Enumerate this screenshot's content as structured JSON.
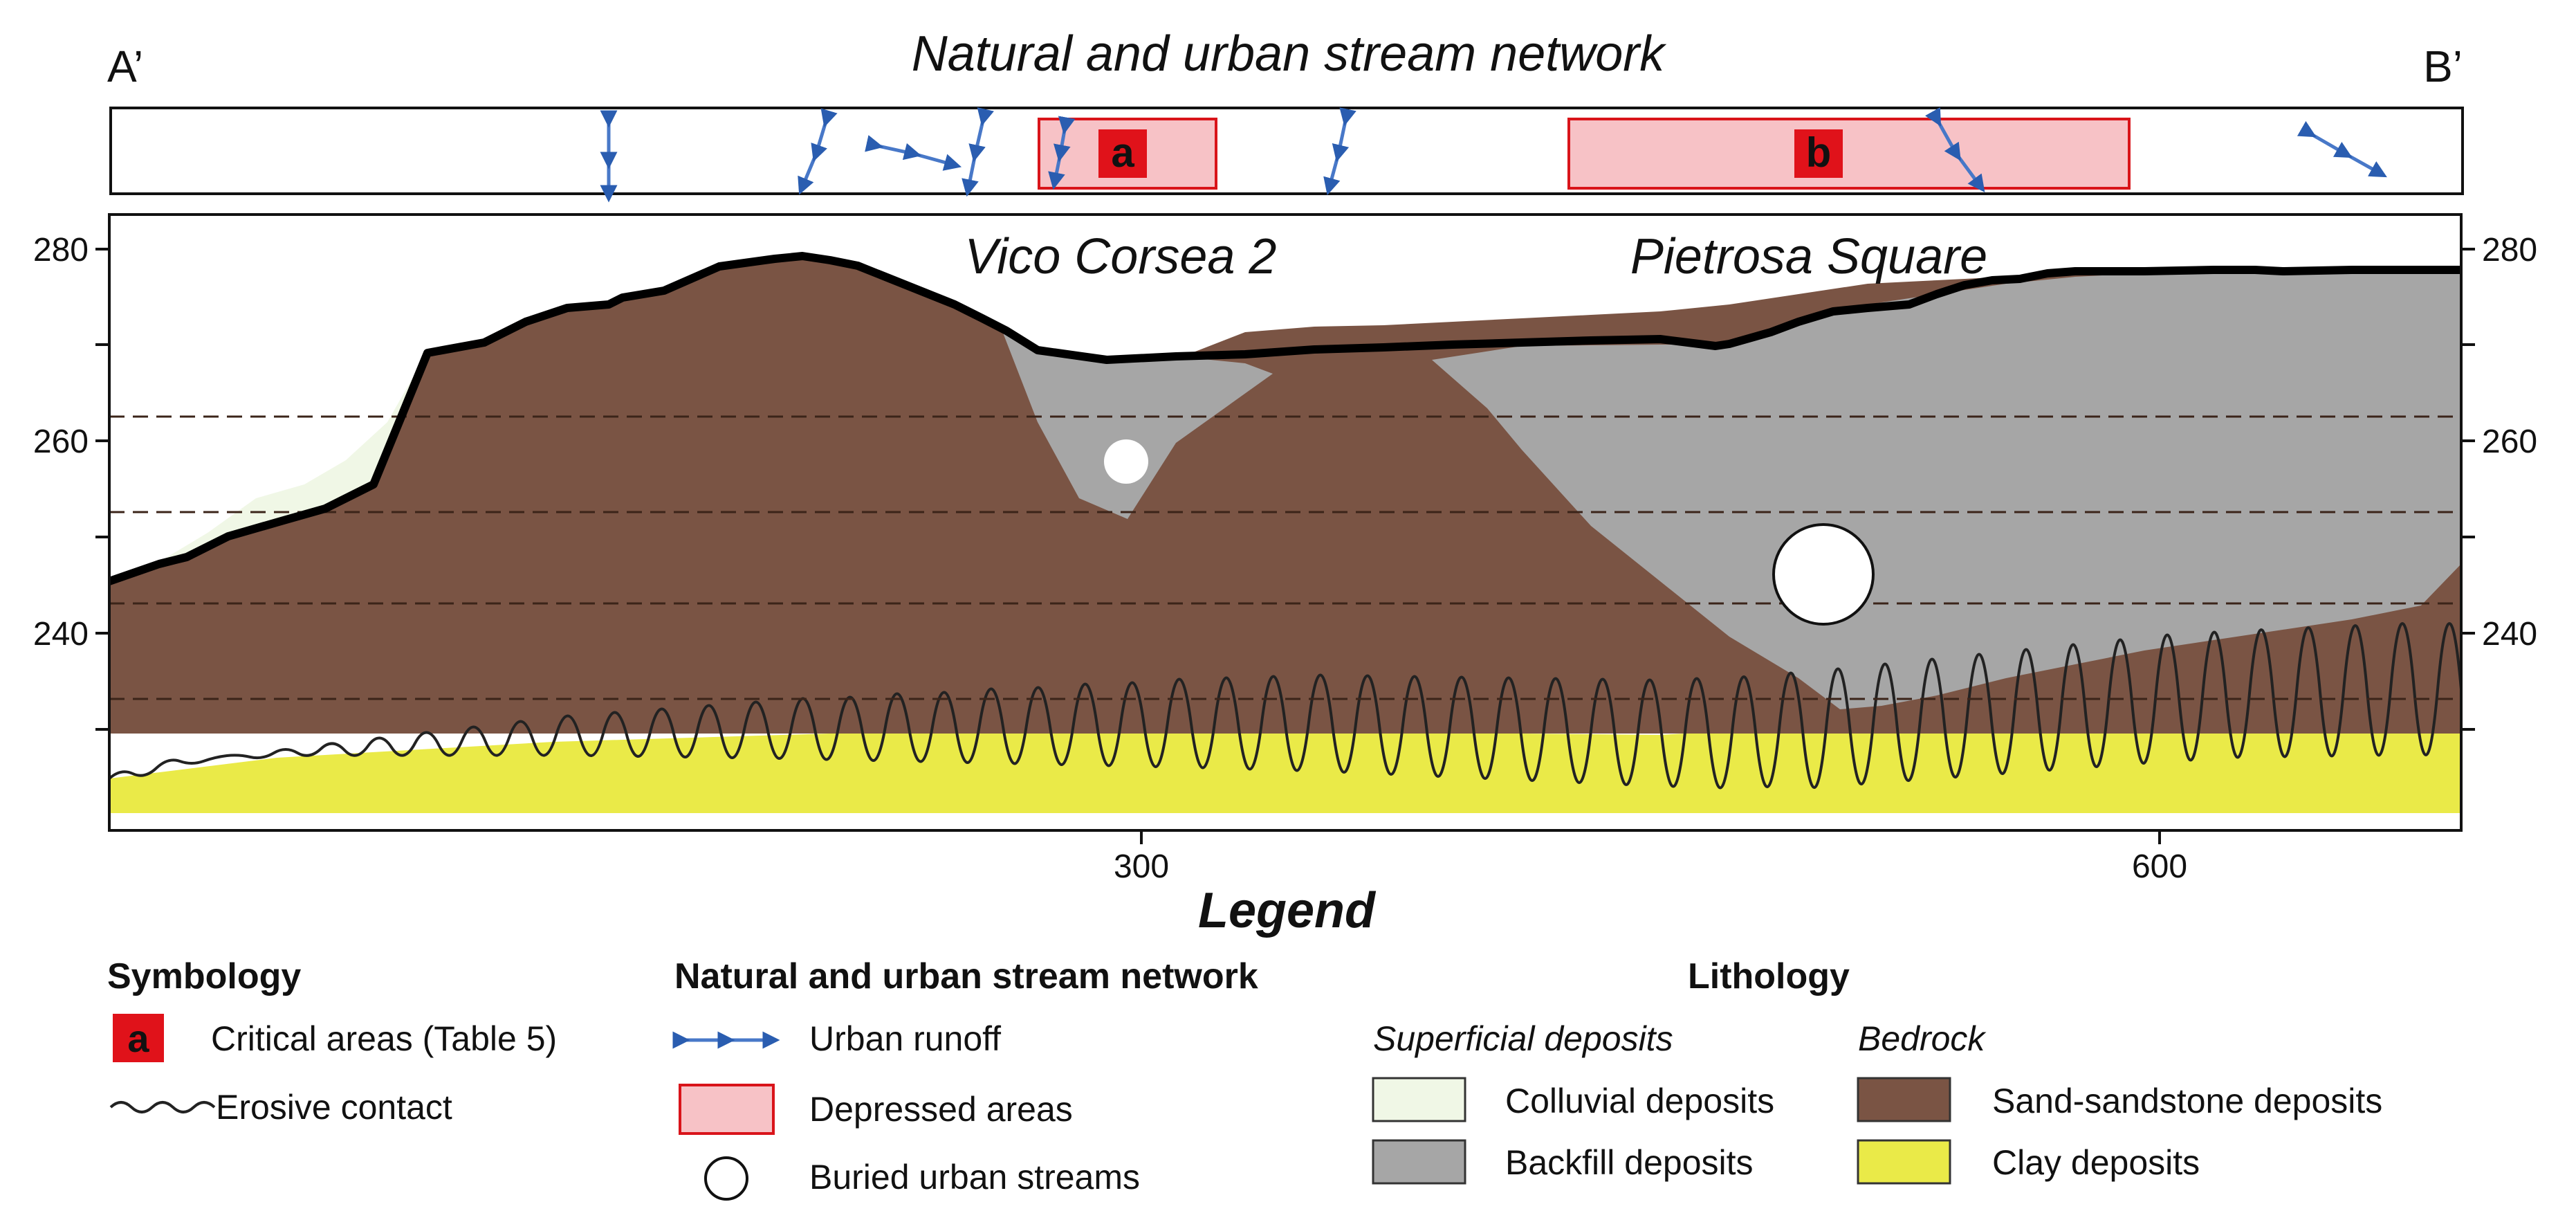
{
  "section": {
    "start_label": "A’",
    "end_label": "B’",
    "strip_title": "Natural and urban stream network",
    "places": [
      "Vico Corsea 2",
      "Pietrosa Square"
    ],
    "critical_areas": [
      "a",
      "b"
    ]
  },
  "axes": {
    "left_ticks": [
      "280",
      "260",
      "240"
    ],
    "right_ticks": [
      "280",
      "260",
      "240"
    ],
    "bottom_ticks": [
      "300",
      "600"
    ]
  },
  "legend": {
    "title": "Legend",
    "symbology": {
      "heading": "Symbology",
      "critical_symbol": "a",
      "critical_label": "Critical areas (Table 5)",
      "erosive_label": "Erosive contact"
    },
    "network": {
      "heading": "Natural and urban stream network",
      "runoff_label": "Urban runoff",
      "depressed_label": "Depressed areas",
      "buried_label": "Buried urban streams"
    },
    "lithology": {
      "heading": "Lithology",
      "superficial_heading": "Superficial deposits",
      "bedrock_heading": "Bedrock",
      "colluvial_label": "Colluvial deposits",
      "backfill_label": "Backfill deposits",
      "sand_label": "Sand-sandstone deposits",
      "clay_label": "Clay deposits"
    }
  },
  "colors": {
    "sand_sandstone": "#7a5444",
    "backfill": "#a6a6a6",
    "colluvial": "#f0f7e6",
    "clay": "#eaea48",
    "depressed_fill": "#f7c2c6",
    "depressed_stroke": "#d9141a",
    "critical_fill": "#e0121a",
    "runoff": "#4878c8"
  }
}
